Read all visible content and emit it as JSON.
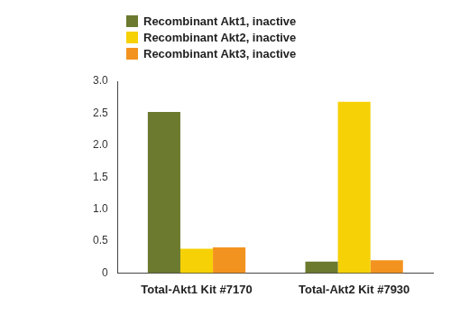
{
  "chart_data": {
    "type": "bar",
    "categories": [
      "Total-Akt1 Kit #7170",
      "Total-Akt2 Kit #7930"
    ],
    "series": [
      {
        "name": "Recombinant Akt1, inactive",
        "color": "#6b7a2f",
        "values": [
          2.52,
          0.18
        ]
      },
      {
        "name": "Recombinant Akt2, inactive",
        "color": "#f6d106",
        "values": [
          0.38,
          2.68
        ]
      },
      {
        "name": "Recombinant Akt3, inactive",
        "color": "#f3931f",
        "values": [
          0.4,
          0.2
        ]
      }
    ],
    "ylim": [
      0,
      3
    ],
    "yticks": [
      0,
      0.5,
      {
        "value": 1,
        "label": "1.0"
      },
      1.5,
      {
        "value": 2,
        "label": "2.0"
      },
      2.5,
      {
        "value": 3,
        "label": "3.0"
      }
    ],
    "grid": false,
    "legend": "top-left"
  }
}
